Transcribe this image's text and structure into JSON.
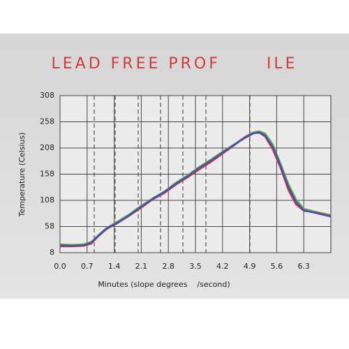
{
  "chart_data": {
    "type": "line",
    "title": "LEAD FREE PROF      ILE",
    "xlabel": "Minutes (slope degrees    /second)",
    "ylabel": "Temperature (Celsius)",
    "x": [
      0,
      0.3,
      0.6,
      0.8,
      1.0,
      1.2,
      1.5,
      1.8,
      2.1,
      2.4,
      2.7,
      3.0,
      3.3,
      3.6,
      3.9,
      4.2,
      4.5,
      4.8,
      5.0,
      5.15,
      5.3,
      5.5,
      5.7,
      5.9,
      6.1,
      6.3,
      6.6,
      7.0
    ],
    "series": [
      {
        "color": "#6ab04c",
        "values": [
          24,
          23,
          24,
          28,
          42,
          55,
          68,
          82,
          98,
          112,
          125,
          142,
          156,
          172,
          186,
          201,
          215,
          230,
          238,
          240,
          236,
          215,
          178,
          140,
          110,
          92,
          86,
          80
        ]
      },
      {
        "color": "#d9383a",
        "values": [
          20,
          20,
          21,
          25,
          40,
          53,
          65,
          79,
          94,
          110,
          122,
          138,
          152,
          167,
          181,
          197,
          213,
          230,
          236,
          237,
          230,
          205,
          170,
          128,
          100,
          88,
          85,
          78
        ]
      },
      {
        "color": "#3f51b5",
        "values": [
          22,
          21,
          22,
          27,
          41,
          54,
          66,
          80,
          96,
          111,
          124,
          140,
          154,
          170,
          184,
          199,
          214,
          228,
          236,
          238,
          232,
          210,
          174,
          134,
          105,
          89,
          84,
          77
        ]
      }
    ],
    "xlim": [
      0,
      7
    ],
    "xticks": [
      {
        "value": 0,
        "label": "0.0"
      },
      0.7,
      1.4,
      2.1,
      2.8,
      3.5,
      4.2,
      4.9,
      5.6,
      6.3
    ],
    "ylim": [
      8,
      308
    ],
    "yticks": [
      8,
      58,
      108,
      158,
      208,
      258,
      308
    ],
    "grid": true
  }
}
